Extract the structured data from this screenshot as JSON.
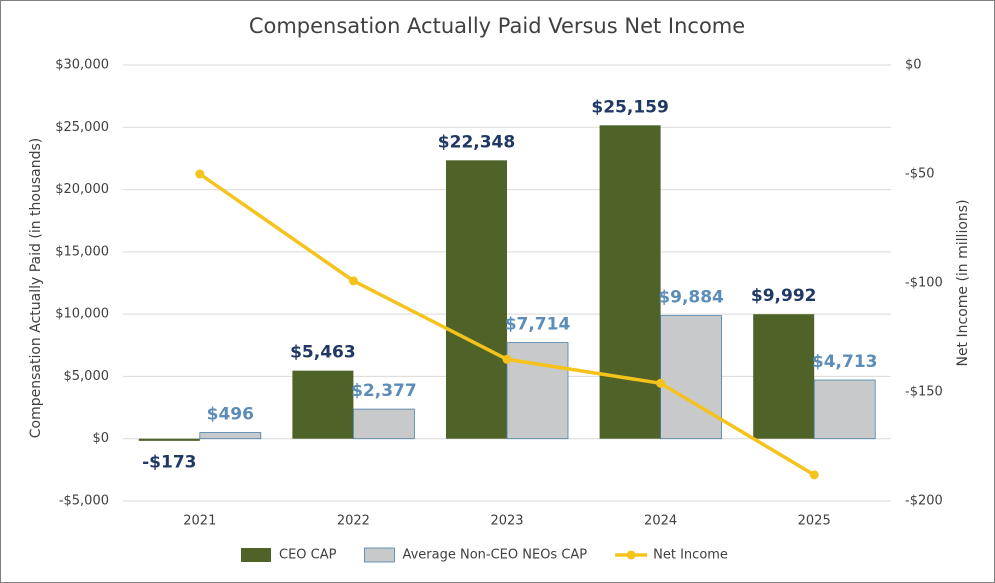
{
  "chart_data": {
    "type": "bar",
    "title": "Compensation Actually Paid Versus Net Income",
    "y_label": "Compensation Actually Paid (in thousands)",
    "y2_label": "Net Income (in millions)",
    "categories": [
      "2021",
      "2022",
      "2023",
      "2024",
      "2025"
    ],
    "series": [
      {
        "name": "CEO CAP",
        "type": "bar",
        "color": "#4f6228",
        "label_color": "#1f3864",
        "values": [
          -173,
          5463,
          22348,
          25159,
          9992
        ],
        "value_labels": [
          "-$173",
          "$5,463",
          "$22,348",
          "$25,159",
          "$9,992"
        ]
      },
      {
        "name": "Average Non-CEO NEOs CAP",
        "type": "bar",
        "color": "#c8c9cb",
        "label_color": "#5b8db8",
        "values": [
          496,
          2377,
          7714,
          9884,
          4713
        ],
        "value_labels": [
          "$496",
          "$2,377",
          "$7,714",
          "$9,884",
          "$4,713"
        ]
      },
      {
        "name": "Net Income",
        "type": "line",
        "color": "#f5c31c",
        "axis": "y2",
        "values": [
          -50,
          -99,
          -135,
          -146,
          -188
        ]
      }
    ],
    "ylim": [
      -5000,
      30000
    ],
    "yticks": [
      {
        "value": -5000,
        "label": "-$5,000"
      },
      {
        "value": 0,
        "label": "$0"
      },
      {
        "value": 5000,
        "label": "$5,000"
      },
      {
        "value": 10000,
        "label": "$10,000"
      },
      {
        "value": 15000,
        "label": "$15,000"
      },
      {
        "value": 20000,
        "label": "$20,000"
      },
      {
        "value": 25000,
        "label": "$25,000"
      },
      {
        "value": 30000,
        "label": "$30,000"
      }
    ],
    "y2lim": [
      -200,
      0
    ],
    "y2ticks": [
      {
        "value": -200,
        "label": "-$200"
      },
      {
        "value": -150,
        "label": "-$150"
      },
      {
        "value": -100,
        "label": "-$100"
      },
      {
        "value": -50,
        "label": "-$50"
      },
      {
        "value": 0,
        "label": "$0"
      }
    ],
    "grid": true
  }
}
